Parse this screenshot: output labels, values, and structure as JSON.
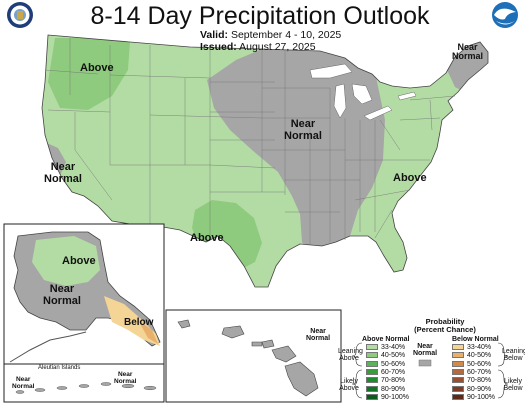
{
  "header": {
    "title": "8-14 Day Precipitation Outlook",
    "valid_label": "Valid:",
    "valid_value": "September 4 - 10, 2025",
    "issued_label": "Issued:",
    "issued_value": "August 27, 2025"
  },
  "logos": {
    "left": "USDA seal",
    "right": "NOAA"
  },
  "map_labels": {
    "nw_above": "Above",
    "ne_near": "Near\nNormal",
    "central_near": "Near\nNormal",
    "ca_near": "Near\nNormal",
    "east_above": "Above",
    "tx_above": "Above",
    "ak_above": "Above",
    "ak_near": "Near\nNormal",
    "ak_below": "Below",
    "aleutian_title": "Aleutian Islands",
    "aleutian_near_left": "Near\nNormal",
    "aleutian_near_right": "Near\nNormal",
    "hawaii_near": "Near\nNormal"
  },
  "legend": {
    "title": "Probability\n(Percent Chance)",
    "above_header": "Above Normal",
    "below_header": "Below Normal",
    "near_label": "Near\nNormal",
    "leaning_above": "Leaning\nAbove",
    "likely_above": "Likely\nAbove",
    "leaning_below": "Leaning\nBelow",
    "likely_below": "Likely\nBelow",
    "ranges": [
      "33-40%",
      "40-50%",
      "50-60%",
      "60-70%",
      "70-80%",
      "80-90%",
      "90-100%"
    ],
    "above_colors": [
      "#b3dca4",
      "#8ecb7e",
      "#5db35a",
      "#3a9d3a",
      "#218a2f",
      "#107425",
      "#0a5c1c"
    ],
    "below_colors": [
      "#f5d596",
      "#e8b06b",
      "#d3894a",
      "#b7693b",
      "#9a5030",
      "#7f3b25",
      "#5e2818"
    ],
    "near_color": "#a6a6a6"
  },
  "colors": {
    "above_33_40": "#b3dca4",
    "above_40_50": "#8ecb7e",
    "below_33_40": "#f5d596",
    "below_40_50": "#e8b06b",
    "near_normal": "#a6a6a6"
  }
}
